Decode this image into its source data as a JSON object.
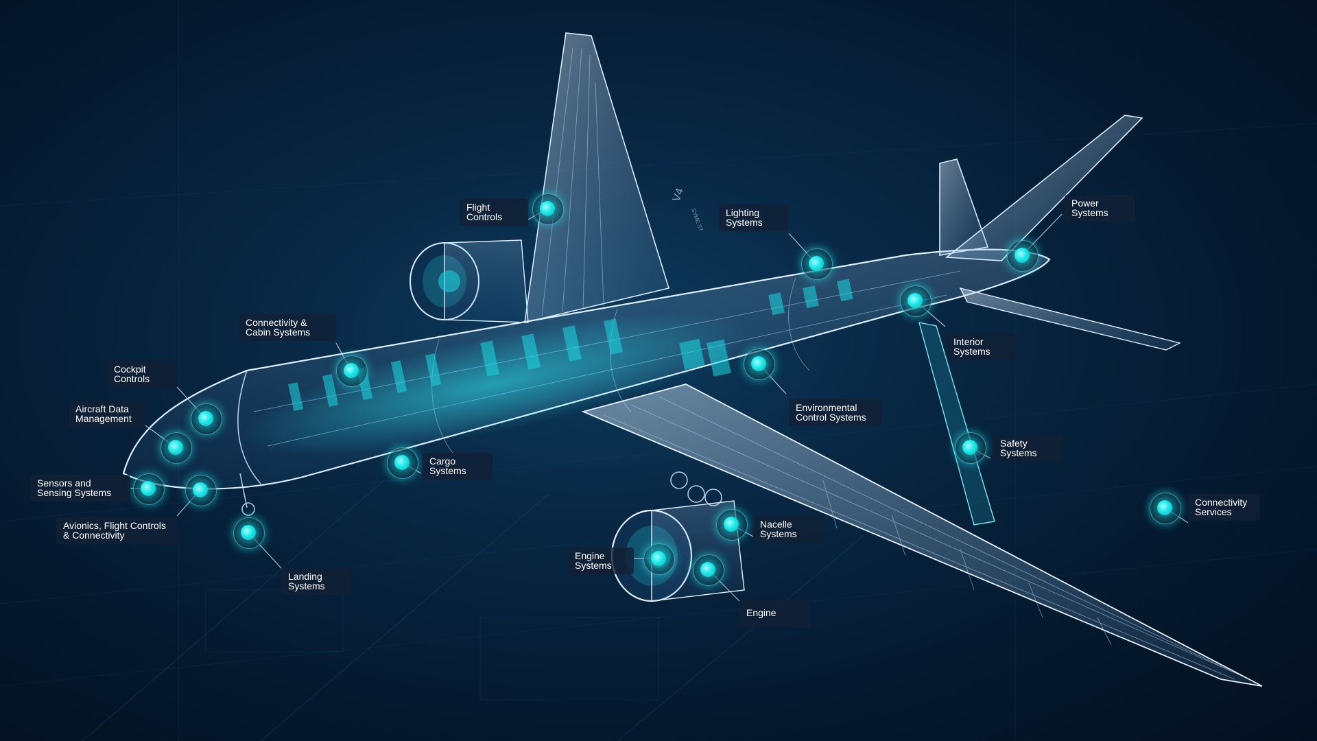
{
  "diagram": {
    "accent_color": "#1ee6e6",
    "background_color": "#061c33",
    "callouts": [
      {
        "id": "flight-controls",
        "label": "Flight\nControls"
      },
      {
        "id": "lighting-systems",
        "label": "Lighting\nSystems"
      },
      {
        "id": "power-systems",
        "label": "Power\nSystems"
      },
      {
        "id": "connectivity-cabin-systems",
        "label": "Connectivity &\nCabin Systems"
      },
      {
        "id": "interior-systems",
        "label": "Interior\nSystems"
      },
      {
        "id": "cockpit-controls",
        "label": "Cockpit\nControls"
      },
      {
        "id": "environmental-control-systems",
        "label": "Environmental\nControl Systems"
      },
      {
        "id": "aircraft-data-management",
        "label": "Aircraft Data\nManagement"
      },
      {
        "id": "safety-systems",
        "label": "Safety\nSystems"
      },
      {
        "id": "cargo-systems",
        "label": "Cargo\nSystems"
      },
      {
        "id": "sensors-sensing-systems",
        "label": "Sensors and\nSensing Systems"
      },
      {
        "id": "connectivity-services",
        "label": "Connectivity\nServices"
      },
      {
        "id": "avionics-flight-controls-connectivity",
        "label": "Avionics, Flight Controls\n& Connectivity"
      },
      {
        "id": "nacelle-systems",
        "label": "Nacelle\nSystems"
      },
      {
        "id": "engine-systems",
        "label": "Engine\nSystems"
      },
      {
        "id": "landing-systems",
        "label": "Landing\nSystems"
      },
      {
        "id": "engine",
        "label": "Engine"
      }
    ],
    "markings": {
      "tail_code_upper": "V4",
      "tail_code_small": "SYME ST"
    }
  }
}
